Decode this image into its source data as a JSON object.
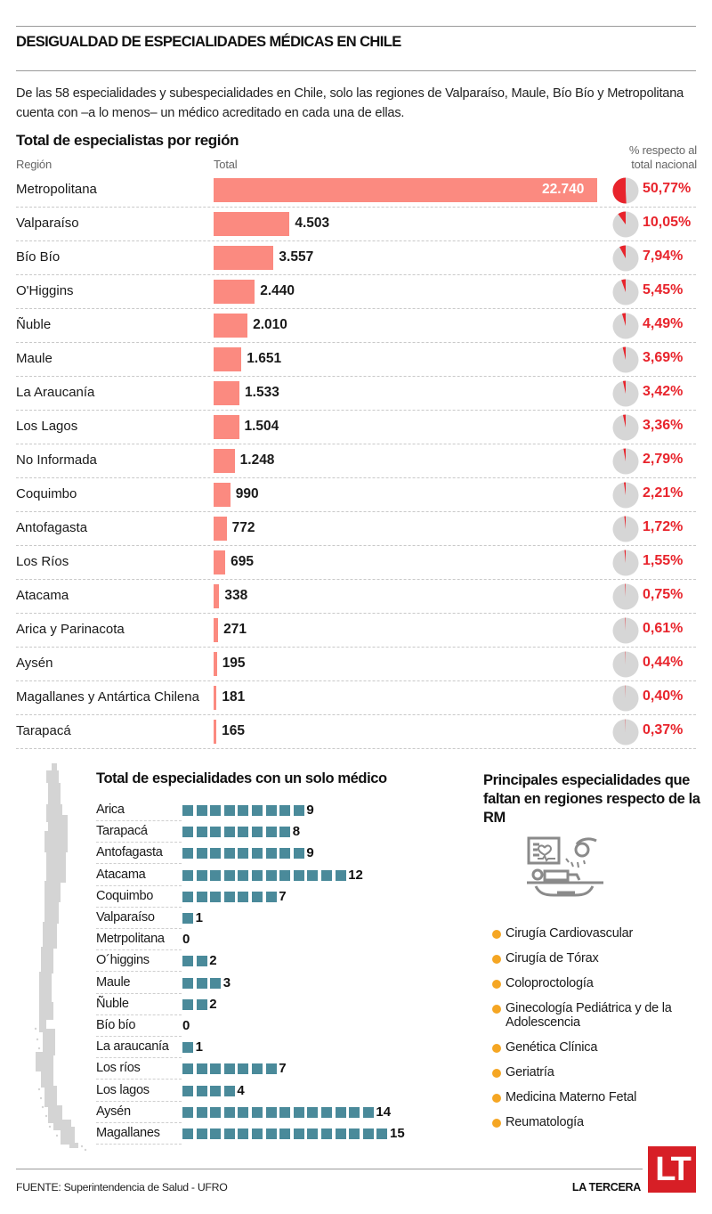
{
  "header": {
    "title": "DESIGUALDAD DE ESPECIALIDADES MÉDICAS EN CHILE",
    "intro": "De las 58 especialidades y subespecialidades en Chile, solo las regiones de Valparaíso, Maule, Bío Bío y Metropolitana cuenta con –a lo menos– un médico acreditado en cada una de ellas."
  },
  "colors": {
    "bar": "#fb8a80",
    "pie_fill": "#e8242c",
    "pie_bg": "#d6d6d6",
    "pct_text": "#e8242c",
    "square": "#4a8a9a",
    "bullet": "#f5a623",
    "logo_bg": "#d71f26"
  },
  "chart_data": [
    {
      "type": "bar",
      "orientation": "horizontal",
      "title": "Total de especialistas por región",
      "xlabel": "Total",
      "ylabel": "Región",
      "extra_column_label": "% respecto al total nacional",
      "categories": [
        "Metropolitana",
        "Valparaíso",
        "Bío Bío",
        "O'Higgins",
        "Ñuble",
        "Maule",
        "La Araucanía",
        "Los Lagos",
        "No Informada",
        "Coquimbo",
        "Antofagasta",
        "Los Ríos",
        "Atacama",
        "Arica y Parinacota",
        "Aysén",
        "Magallanes y Antártica Chilena",
        "Tarapacá"
      ],
      "values": [
        22740,
        4503,
        3557,
        2440,
        2010,
        1651,
        1533,
        1504,
        1248,
        990,
        772,
        695,
        338,
        271,
        195,
        181,
        165
      ],
      "value_labels": [
        "22.740",
        "4.503",
        "3.557",
        "2.440",
        "2.010",
        "1.651",
        "1.533",
        "1.504",
        "1.248",
        "990",
        "772",
        "695",
        "338",
        "271",
        "195",
        "181",
        "165"
      ],
      "percent": [
        50.77,
        10.05,
        7.94,
        5.45,
        4.49,
        3.69,
        3.42,
        3.36,
        2.79,
        2.21,
        1.72,
        1.55,
        0.75,
        0.61,
        0.44,
        0.4,
        0.37
      ],
      "percent_labels": [
        "50,77%",
        "10,05%",
        "7,94%",
        "5,45%",
        "4,49%",
        "3,69%",
        "3,42%",
        "3,36%",
        "2,79%",
        "2,21%",
        "1,72%",
        "1,55%",
        "0,75%",
        "0,61%",
        "0,44%",
        "0,40%",
        "0,37%"
      ],
      "xlim": [
        0,
        22740
      ],
      "grid": false,
      "legend": "none"
    },
    {
      "type": "bar",
      "orientation": "horizontal",
      "style": "unit-squares",
      "title": "Total de especialidades con un solo médico",
      "categories": [
        "Arica",
        "Tarapacá",
        "Antofagasta",
        "Atacama",
        "Coquimbo",
        "Valparaíso",
        "Metrpolitana",
        "O´higgins",
        "Maule",
        "Ñuble",
        "Bío bío",
        "La araucanía",
        "Los ríos",
        "Los lagos",
        "Aysén",
        "Magallanes"
      ],
      "values": [
        9,
        8,
        9,
        12,
        7,
        1,
        0,
        2,
        3,
        2,
        0,
        1,
        7,
        4,
        14,
        15
      ],
      "xlim": [
        0,
        15
      ],
      "grid": false,
      "legend": "none"
    }
  ],
  "columns": {
    "region": "Región",
    "total": "Total",
    "pct_line1": "% respecto al",
    "pct_line2": "total nacional"
  },
  "missing": {
    "title": "Principales especialidades que faltan en regiones respecto de la RM",
    "icon": "surgery-icon",
    "items": [
      "Cirugía Cardiovascular",
      "Cirugía de Tórax",
      "Coloproctología",
      "Ginecología Pediátrica y de la Adolescencia",
      "Genética Clínica",
      "Geriatría",
      "Medicina Materno Fetal",
      "Reumatología"
    ]
  },
  "footer": {
    "source_label": "FUENTE:",
    "source": " Superintendencia de Salud - UFRO",
    "brand": "LA TERCERA",
    "logo": "LT"
  }
}
